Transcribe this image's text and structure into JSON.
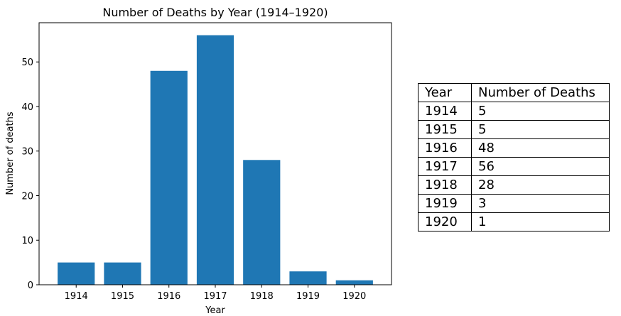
{
  "chart_data": {
    "type": "bar",
    "title": "Number of Deaths by Year (1914–1920)",
    "xlabel": "Year",
    "ylabel": "Number of deaths",
    "categories": [
      "1914",
      "1915",
      "1916",
      "1917",
      "1918",
      "1919",
      "1920"
    ],
    "values": [
      5,
      5,
      48,
      56,
      28,
      3,
      1
    ],
    "ylim": [
      0,
      58.8
    ],
    "yticks": [
      0,
      10,
      20,
      30,
      40,
      50
    ],
    "grid": false,
    "bar_color": "#1f77b4"
  },
  "table": {
    "headers": [
      "Year",
      "Number of Deaths"
    ],
    "rows": [
      [
        "1914",
        "5"
      ],
      [
        "1915",
        "5"
      ],
      [
        "1916",
        "48"
      ],
      [
        "1917",
        "56"
      ],
      [
        "1918",
        "28"
      ],
      [
        "1919",
        "3"
      ],
      [
        "1920",
        "1"
      ]
    ]
  }
}
